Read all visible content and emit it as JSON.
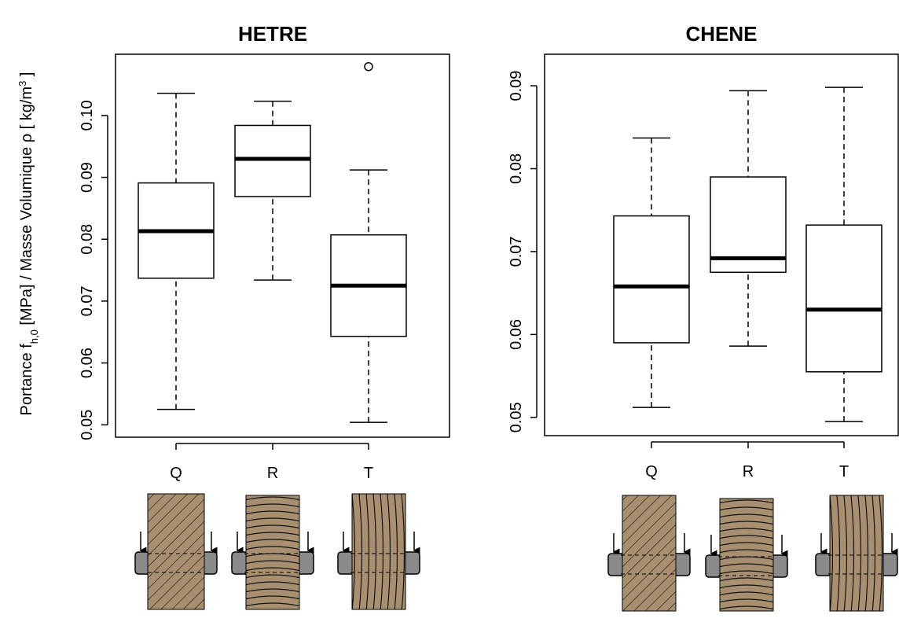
{
  "chart_data": [
    {
      "type": "box",
      "title": "HETRE",
      "ylabel": [
        "Portance  f",
        "h,0",
        "  [MPa]  / Masse Volumique ρ [ kg/m",
        "3",
        " ]"
      ],
      "categories": [
        "Q",
        "R",
        "T"
      ],
      "boxes": [
        {
          "whislo": 0.0525,
          "q1": 0.0737,
          "med": 0.0813,
          "q3": 0.0891,
          "whishi": 0.1036
        },
        {
          "whislo": 0.0734,
          "q1": 0.0869,
          "med": 0.093,
          "q3": 0.0984,
          "whishi": 0.1023
        },
        {
          "whislo": 0.0504,
          "q1": 0.0643,
          "med": 0.0725,
          "q3": 0.0807,
          "whishi": 0.0912,
          "fliers": [
            0.1079
          ]
        }
      ],
      "ylim": [
        0.048,
        0.1099
      ],
      "yticks": [
        0.05,
        0.06,
        0.07,
        0.08,
        0.09,
        {
          "value": 0.1,
          "label": "0.10"
        }
      ]
    },
    {
      "type": "box",
      "title": "CHENE",
      "categories": [
        "Q",
        "R",
        "T"
      ],
      "boxes": [
        {
          "whislo": 0.0512,
          "q1": 0.059,
          "med": 0.0658,
          "q3": 0.0743,
          "whishi": 0.0837
        },
        {
          "whislo": 0.0586,
          "q1": 0.0675,
          "med": 0.0692,
          "q3": 0.079,
          "whishi": 0.0894
        },
        {
          "whislo": 0.0495,
          "q1": 0.0555,
          "med": 0.063,
          "q3": 0.0732,
          "whishi": 0.0898
        }
      ],
      "ylim": [
        0.0478,
        0.0938
      ],
      "yticks": [
        0.05,
        0.06,
        0.07,
        0.08,
        0.09
      ]
    }
  ]
}
